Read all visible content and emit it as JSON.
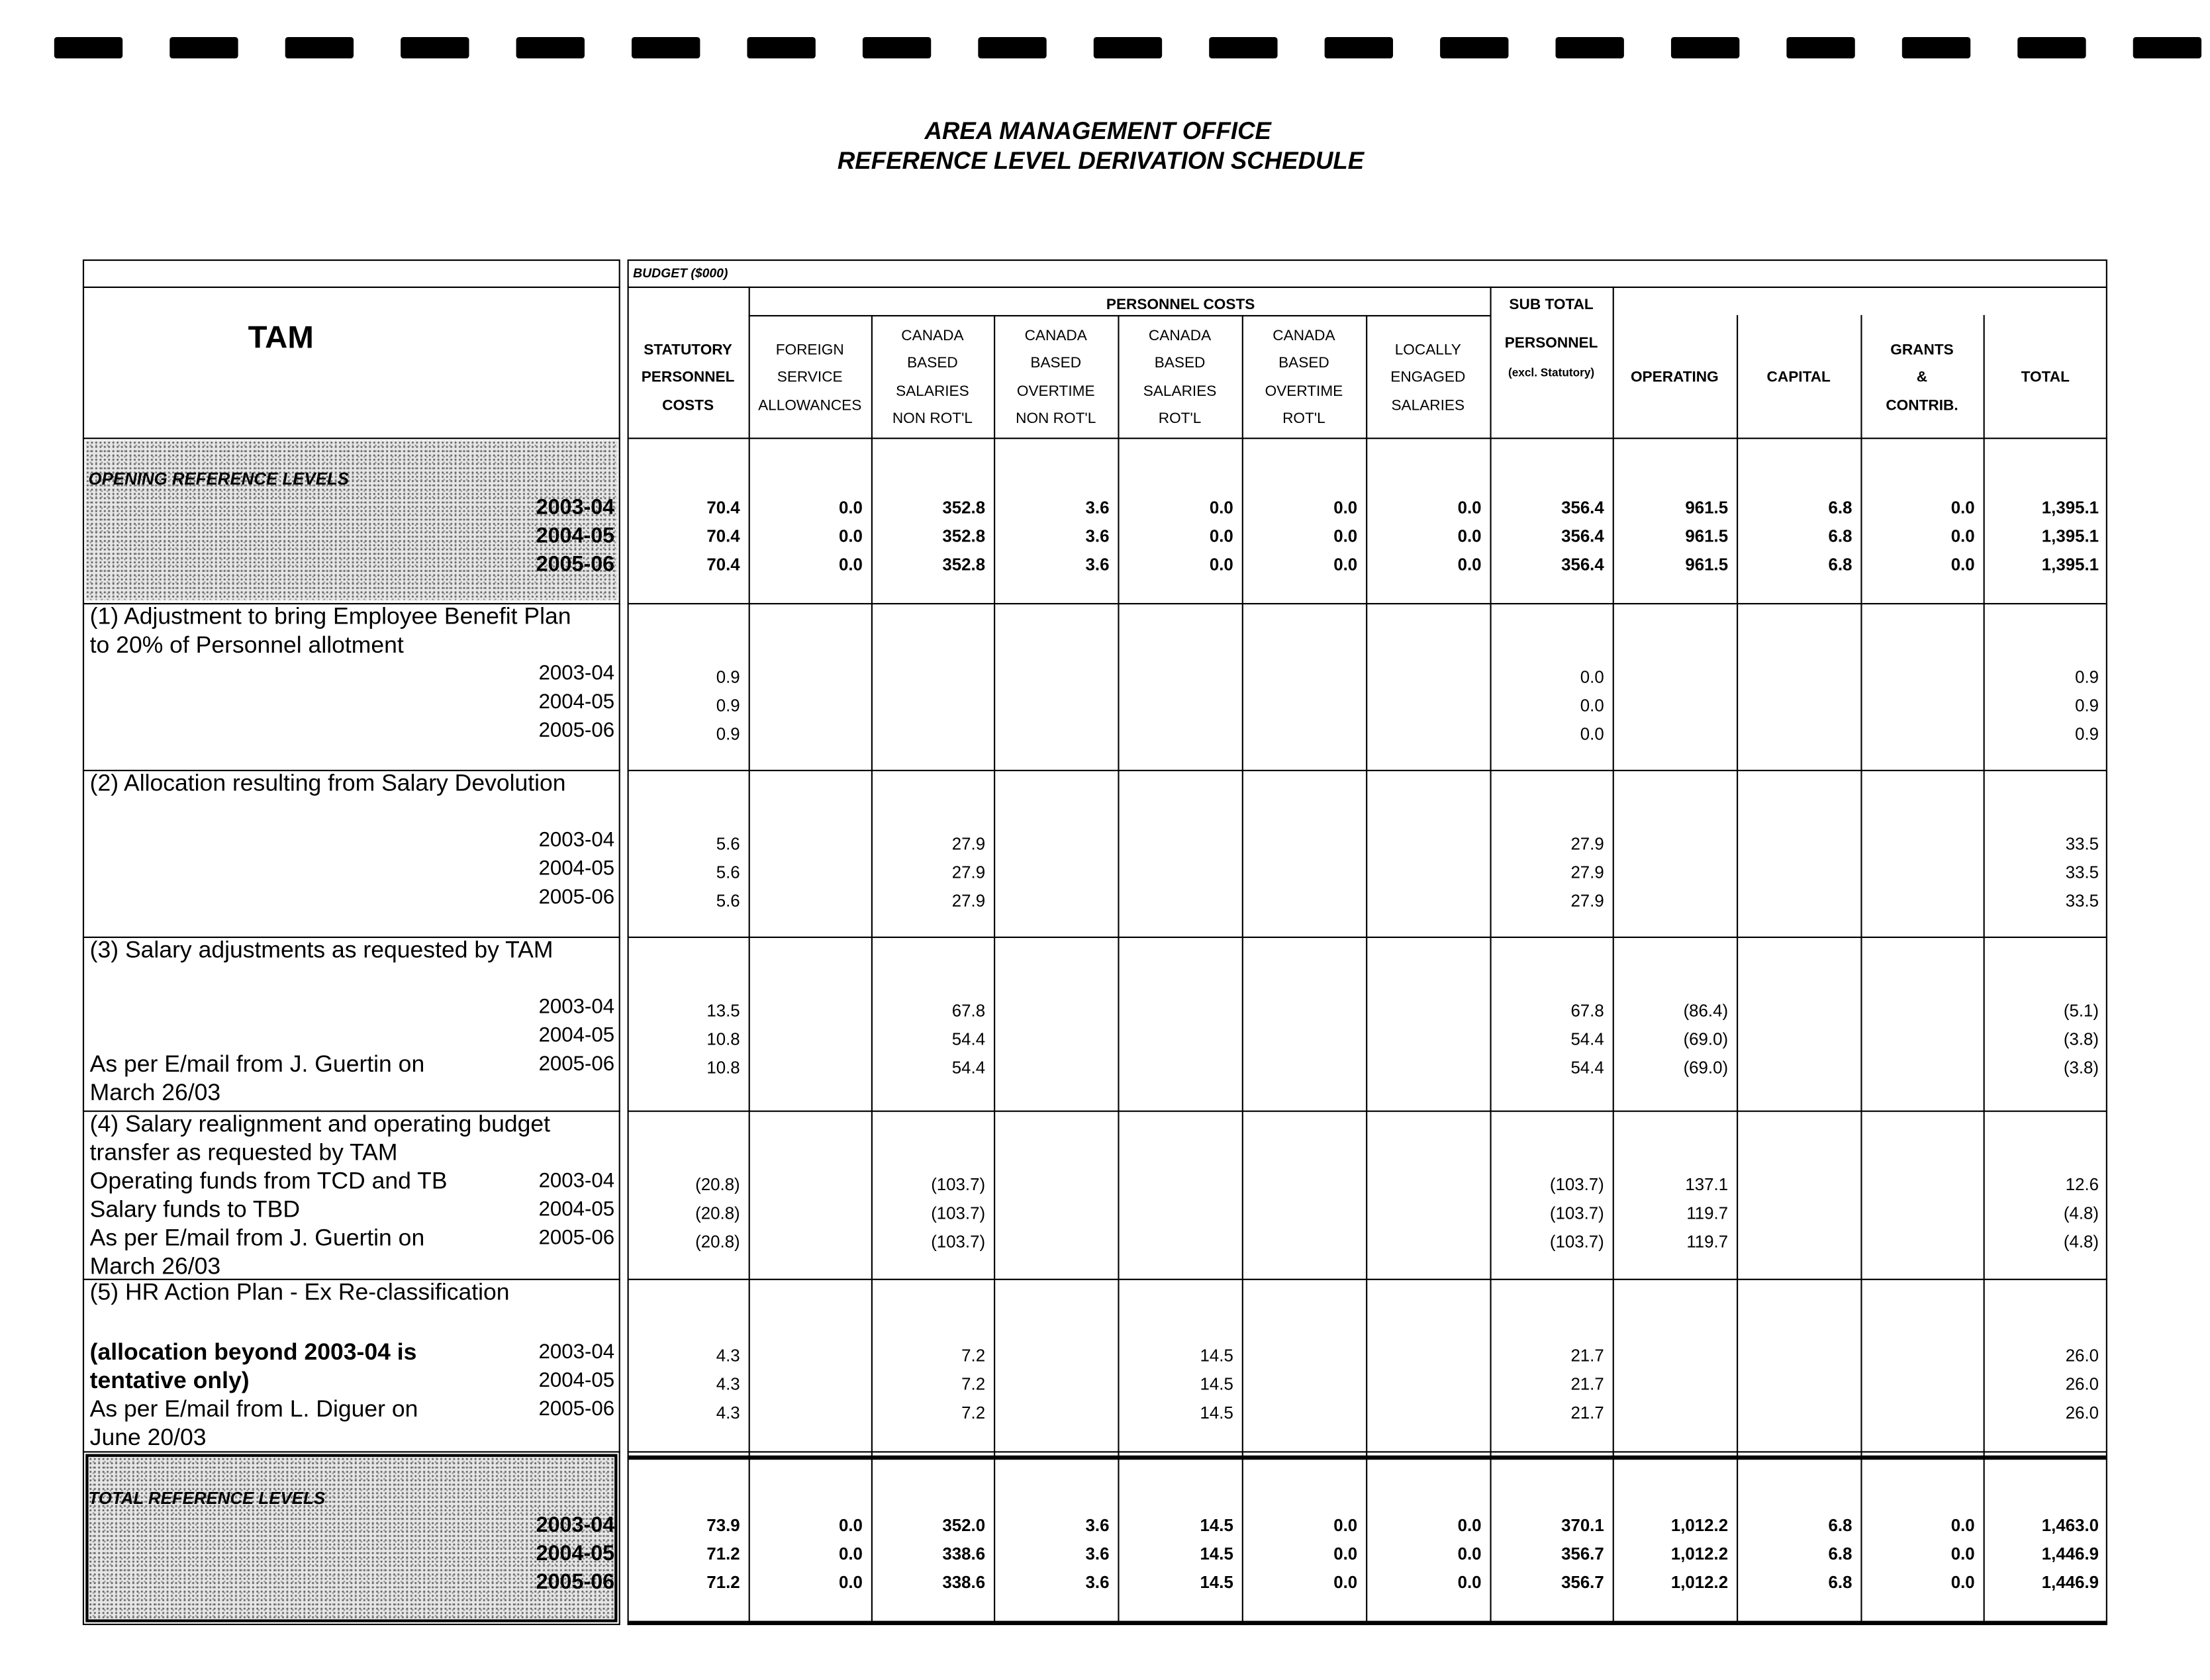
{
  "title": [
    "AREA MANAGEMENT OFFICE",
    "REFERENCE LEVEL DERIVATION SCHEDULE"
  ],
  "left_header": "TAM",
  "budget_label": "BUDGET ($000)",
  "group_label": "PERSONNEL COSTS",
  "subtotal_label": "SUB TOTAL",
  "columns": [
    [
      "STATUTORY",
      "PERSONNEL",
      "COSTS"
    ],
    [
      "FOREIGN",
      "SERVICE",
      "ALLOWANCES"
    ],
    [
      "CANADA",
      "BASED",
      "SALARIES",
      "NON ROT'L"
    ],
    [
      "CANADA",
      "BASED",
      "OVERTIME",
      "NON ROT'L"
    ],
    [
      "CANADA",
      "BASED",
      "SALARIES",
      "ROT'L"
    ],
    [
      "CANADA",
      "BASED",
      "OVERTIME",
      "ROT'L"
    ],
    [
      "LOCALLY",
      "ENGAGED",
      "SALARIES"
    ],
    [
      "PERSONNEL",
      "(excl. Statutory)"
    ],
    [
      "OPERATING"
    ],
    [
      "CAPITAL"
    ],
    [
      "GRANTS",
      "&",
      "CONTRIB."
    ],
    [
      "TOTAL"
    ]
  ],
  "opening": {
    "label": "OPENING REFERENCE LEVELS",
    "rows": [
      {
        "year": "2003-04",
        "values": [
          "70.4",
          "0.0",
          "352.8",
          "3.6",
          "0.0",
          "0.0",
          "0.0",
          "356.4",
          "961.5",
          "6.8",
          "0.0",
          "1,395.1"
        ]
      },
      {
        "year": "2004-05",
        "values": [
          "70.4",
          "0.0",
          "352.8",
          "3.6",
          "0.0",
          "0.0",
          "0.0",
          "356.4",
          "961.5",
          "6.8",
          "0.0",
          "1,395.1"
        ]
      },
      {
        "year": "2005-06",
        "values": [
          "70.4",
          "0.0",
          "352.8",
          "3.6",
          "0.0",
          "0.0",
          "0.0",
          "356.4",
          "961.5",
          "6.8",
          "0.0",
          "1,395.1"
        ]
      }
    ]
  },
  "sections": [
    {
      "title": [
        "(1) Adjustment to bring Employee Benefit Plan",
        "to 20% of Personnel allotment"
      ],
      "rows": [
        {
          "year": "2003-04",
          "values": [
            "0.9",
            null,
            null,
            null,
            null,
            null,
            null,
            "0.0",
            null,
            null,
            null,
            "0.9"
          ]
        },
        {
          "year": "2004-05",
          "values": [
            "0.9",
            null,
            null,
            null,
            null,
            null,
            null,
            "0.0",
            null,
            null,
            null,
            "0.9"
          ]
        },
        {
          "year": "2005-06",
          "values": [
            "0.9",
            null,
            null,
            null,
            null,
            null,
            null,
            "0.0",
            null,
            null,
            null,
            "0.9"
          ]
        }
      ]
    },
    {
      "title": [
        "(2) Allocation resulting from Salary Devolution"
      ],
      "rows": [
        {
          "year": "2003-04",
          "values": [
            "5.6",
            null,
            "27.9",
            null,
            null,
            null,
            null,
            "27.9",
            null,
            null,
            null,
            "33.5"
          ]
        },
        {
          "year": "2004-05",
          "values": [
            "5.6",
            null,
            "27.9",
            null,
            null,
            null,
            null,
            "27.9",
            null,
            null,
            null,
            "33.5"
          ]
        },
        {
          "year": "2005-06",
          "values": [
            "5.6",
            null,
            "27.9",
            null,
            null,
            null,
            null,
            "27.9",
            null,
            null,
            null,
            "33.5"
          ]
        }
      ]
    },
    {
      "title": [
        "(3) Salary adjustments as requested by TAM"
      ],
      "rows": [
        {
          "year": "2003-04",
          "values": [
            "13.5",
            null,
            "67.8",
            null,
            null,
            null,
            null,
            "67.8",
            "(86.4)",
            null,
            null,
            "(5.1)"
          ]
        },
        {
          "year": "2004-05",
          "values": [
            "10.8",
            null,
            "54.4",
            null,
            null,
            null,
            null,
            "54.4",
            "(69.0)",
            null,
            null,
            "(3.8)"
          ]
        },
        {
          "note": "As per E/mail from J. Guertin on",
          "year": "2005-06",
          "values": [
            "10.8",
            null,
            "54.4",
            null,
            null,
            null,
            null,
            "54.4",
            "(69.0)",
            null,
            null,
            "(3.8)"
          ]
        }
      ],
      "footer": "March 26/03"
    },
    {
      "title": [
        "(4) Salary realignment and operating budget",
        "transfer as requested by TAM"
      ],
      "rows": [
        {
          "note": "Operating funds from TCD and TB",
          "year": "2003-04",
          "values": [
            "(20.8)",
            null,
            "(103.7)",
            null,
            null,
            null,
            null,
            "(103.7)",
            "137.1",
            null,
            null,
            "12.6"
          ]
        },
        {
          "note": "Salary funds to TBD",
          "year": "2004-05",
          "values": [
            "(20.8)",
            null,
            "(103.7)",
            null,
            null,
            null,
            null,
            "(103.7)",
            "119.7",
            null,
            null,
            "(4.8)"
          ]
        },
        {
          "note": "As per E/mail from J. Guertin on",
          "year": "2005-06",
          "values": [
            "(20.8)",
            null,
            "(103.7)",
            null,
            null,
            null,
            null,
            "(103.7)",
            "119.7",
            null,
            null,
            "(4.8)"
          ]
        }
      ],
      "footer": "March 26/03"
    },
    {
      "title": [
        "(5) HR Action Plan - Ex Re-classification"
      ],
      "rows": [
        {
          "note": "(allocation beyond 2003-04 is",
          "note_bold": true,
          "year": "2003-04",
          "values": [
            "4.3",
            null,
            "7.2",
            null,
            "14.5",
            null,
            null,
            "21.7",
            null,
            null,
            null,
            "26.0"
          ]
        },
        {
          "note": "tentative only)",
          "note_bold": true,
          "year": "2004-05",
          "values": [
            "4.3",
            null,
            "7.2",
            null,
            "14.5",
            null,
            null,
            "21.7",
            null,
            null,
            null,
            "26.0"
          ]
        },
        {
          "note": "As per E/mail from L. Diguer on",
          "year": "2005-06",
          "values": [
            "4.3",
            null,
            "7.2",
            null,
            "14.5",
            null,
            null,
            "21.7",
            null,
            null,
            null,
            "26.0"
          ]
        }
      ],
      "footer": "June 20/03"
    }
  ],
  "total": {
    "label": "TOTAL REFERENCE LEVELS",
    "rows": [
      {
        "year": "2003-04",
        "values": [
          "73.9",
          "0.0",
          "352.0",
          "3.6",
          "14.5",
          "0.0",
          "0.0",
          "370.1",
          "1,012.2",
          "6.8",
          "0.0",
          "1,463.0"
        ]
      },
      {
        "year": "2004-05",
        "values": [
          "71.2",
          "0.0",
          "338.6",
          "3.6",
          "14.5",
          "0.0",
          "0.0",
          "356.7",
          "1,012.2",
          "6.8",
          "0.0",
          "1,446.9"
        ]
      },
      {
        "year": "2005-06",
        "values": [
          "71.2",
          "0.0",
          "338.6",
          "3.6",
          "14.5",
          "0.0",
          "0.0",
          "356.7",
          "1,012.2",
          "6.8",
          "0.0",
          "1,446.9"
        ]
      }
    ]
  }
}
